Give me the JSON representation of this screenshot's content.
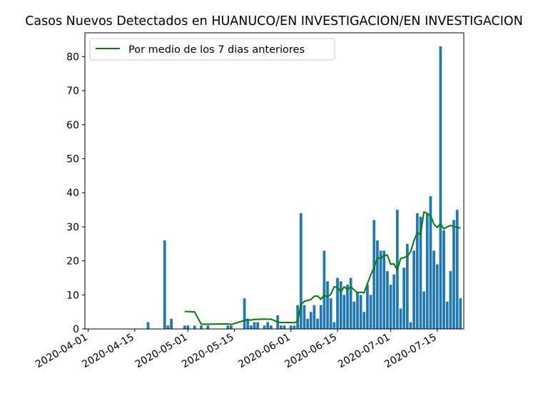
{
  "chart_data": {
    "type": "bar",
    "title": "Casos Nuevos Detectados en HUANUCO/EN INVESTIGACION/EN INVESTIGACION",
    "xlabel": "",
    "ylabel": "",
    "x_tick_labels": [
      "2020-04-01",
      "2020-04-15",
      "2020-05-01",
      "2020-05-15",
      "2020-06-01",
      "2020-06-15",
      "2020-07-01",
      "2020-07-15"
    ],
    "y_tick_labels": [
      "0",
      "10",
      "20",
      "30",
      "40",
      "50",
      "60",
      "70",
      "80"
    ],
    "ylim": [
      0,
      87
    ],
    "xlim": [
      "2020-03-31",
      "2020-07-23"
    ],
    "grid": false,
    "legend_position": "upper-left",
    "bar_color": "#1f77b4",
    "line_color": "#008000",
    "series": [
      {
        "kind": "bar",
        "dates": [
          "2020-04-19",
          "2020-04-24",
          "2020-04-25",
          "2020-04-26",
          "2020-04-30",
          "2020-05-01",
          "2020-05-03",
          "2020-05-05",
          "2020-05-07",
          "2020-05-13",
          "2020-05-14",
          "2020-05-18",
          "2020-05-19",
          "2020-05-20",
          "2020-05-21",
          "2020-05-22",
          "2020-05-24",
          "2020-05-25",
          "2020-05-26",
          "2020-05-28",
          "2020-05-29",
          "2020-05-30",
          "2020-06-01",
          "2020-06-02",
          "2020-06-03",
          "2020-06-04",
          "2020-06-05",
          "2020-06-06",
          "2020-06-07",
          "2020-06-08",
          "2020-06-09",
          "2020-06-10",
          "2020-06-11",
          "2020-06-12",
          "2020-06-13",
          "2020-06-14",
          "2020-06-15",
          "2020-06-16",
          "2020-06-17",
          "2020-06-18",
          "2020-06-19",
          "2020-06-20",
          "2020-06-21",
          "2020-06-22",
          "2020-06-23",
          "2020-06-24",
          "2020-06-25",
          "2020-06-26",
          "2020-06-27",
          "2020-06-28",
          "2020-06-29",
          "2020-06-30",
          "2020-07-01",
          "2020-07-02",
          "2020-07-03",
          "2020-07-04",
          "2020-07-05",
          "2020-07-06",
          "2020-07-07",
          "2020-07-08",
          "2020-07-09",
          "2020-07-10",
          "2020-07-11",
          "2020-07-12",
          "2020-07-13",
          "2020-07-14",
          "2020-07-15",
          "2020-07-16",
          "2020-07-17",
          "2020-07-18",
          "2020-07-19",
          "2020-07-20",
          "2020-07-21",
          "2020-07-22"
        ],
        "values": [
          2,
          26,
          1,
          3,
          1,
          1,
          1,
          1,
          1,
          1,
          1,
          9,
          3,
          1,
          2,
          2,
          1,
          2,
          1,
          4,
          1,
          1,
          1,
          1,
          7,
          34,
          7,
          3,
          5,
          7,
          3,
          7,
          23,
          14,
          9,
          2,
          15,
          14,
          10,
          13,
          15,
          8,
          11,
          10,
          5,
          13,
          10,
          32,
          26,
          23,
          23,
          17,
          13,
          16,
          35,
          6,
          18,
          25,
          2,
          23,
          34,
          33,
          11,
          34,
          39,
          23,
          19,
          83,
          29,
          8,
          17,
          32,
          35,
          9
        ]
      },
      {
        "kind": "line",
        "name": "Por medio de los 7 dias anteriores",
        "dates": [
          "2020-04-30",
          "2020-05-01",
          "2020-05-03",
          "2020-05-05",
          "2020-05-07",
          "2020-05-13",
          "2020-05-14",
          "2020-05-18",
          "2020-05-19",
          "2020-05-20",
          "2020-05-21",
          "2020-05-22",
          "2020-05-24",
          "2020-05-25",
          "2020-05-26",
          "2020-05-28",
          "2020-05-29",
          "2020-05-30",
          "2020-06-01",
          "2020-06-02",
          "2020-06-03",
          "2020-06-04",
          "2020-06-05",
          "2020-06-06",
          "2020-06-07",
          "2020-06-08",
          "2020-06-09",
          "2020-06-10",
          "2020-06-11",
          "2020-06-12",
          "2020-06-13",
          "2020-06-14",
          "2020-06-15",
          "2020-06-16",
          "2020-06-17",
          "2020-06-18",
          "2020-06-19",
          "2020-06-20",
          "2020-06-21",
          "2020-06-22",
          "2020-06-23",
          "2020-06-24",
          "2020-06-25",
          "2020-06-26",
          "2020-06-27",
          "2020-06-28",
          "2020-06-29",
          "2020-06-30",
          "2020-07-01",
          "2020-07-02",
          "2020-07-03",
          "2020-07-04",
          "2020-07-05",
          "2020-07-06",
          "2020-07-07",
          "2020-07-08",
          "2020-07-09",
          "2020-07-10",
          "2020-07-11",
          "2020-07-12",
          "2020-07-13",
          "2020-07-14",
          "2020-07-15",
          "2020-07-16",
          "2020-07-17",
          "2020-07-18",
          "2020-07-19",
          "2020-07-20",
          "2020-07-21",
          "2020-07-22"
        ],
        "values": [
          5.1,
          5.1,
          5.0,
          1.4,
          1.4,
          1.5,
          1.3,
          2.5,
          2.7,
          2.6,
          2.8,
          2.8,
          2.9,
          2.8,
          2.9,
          2.0,
          1.9,
          1.9,
          1.9,
          1.8,
          2.3,
          7.1,
          8.1,
          8.4,
          8.6,
          9.6,
          9.7,
          8.7,
          9.9,
          9.4,
          10.2,
          12.4,
          12.2,
          10.9,
          12.4,
          11.6,
          12.4,
          11.5,
          10.6,
          10.8,
          10.6,
          13.3,
          15.9,
          18.0,
          20.9,
          20.7,
          21.6,
          21.7,
          19.0,
          19.1,
          17.3,
          20.7,
          21.0,
          21.3,
          22.7,
          25.9,
          28.3,
          27.7,
          34.4,
          33.9,
          33.3,
          30.8,
          29.8,
          30.9,
          29.4,
          30.0,
          30.4,
          30.1,
          29.9,
          29.6
        ]
      }
    ]
  }
}
